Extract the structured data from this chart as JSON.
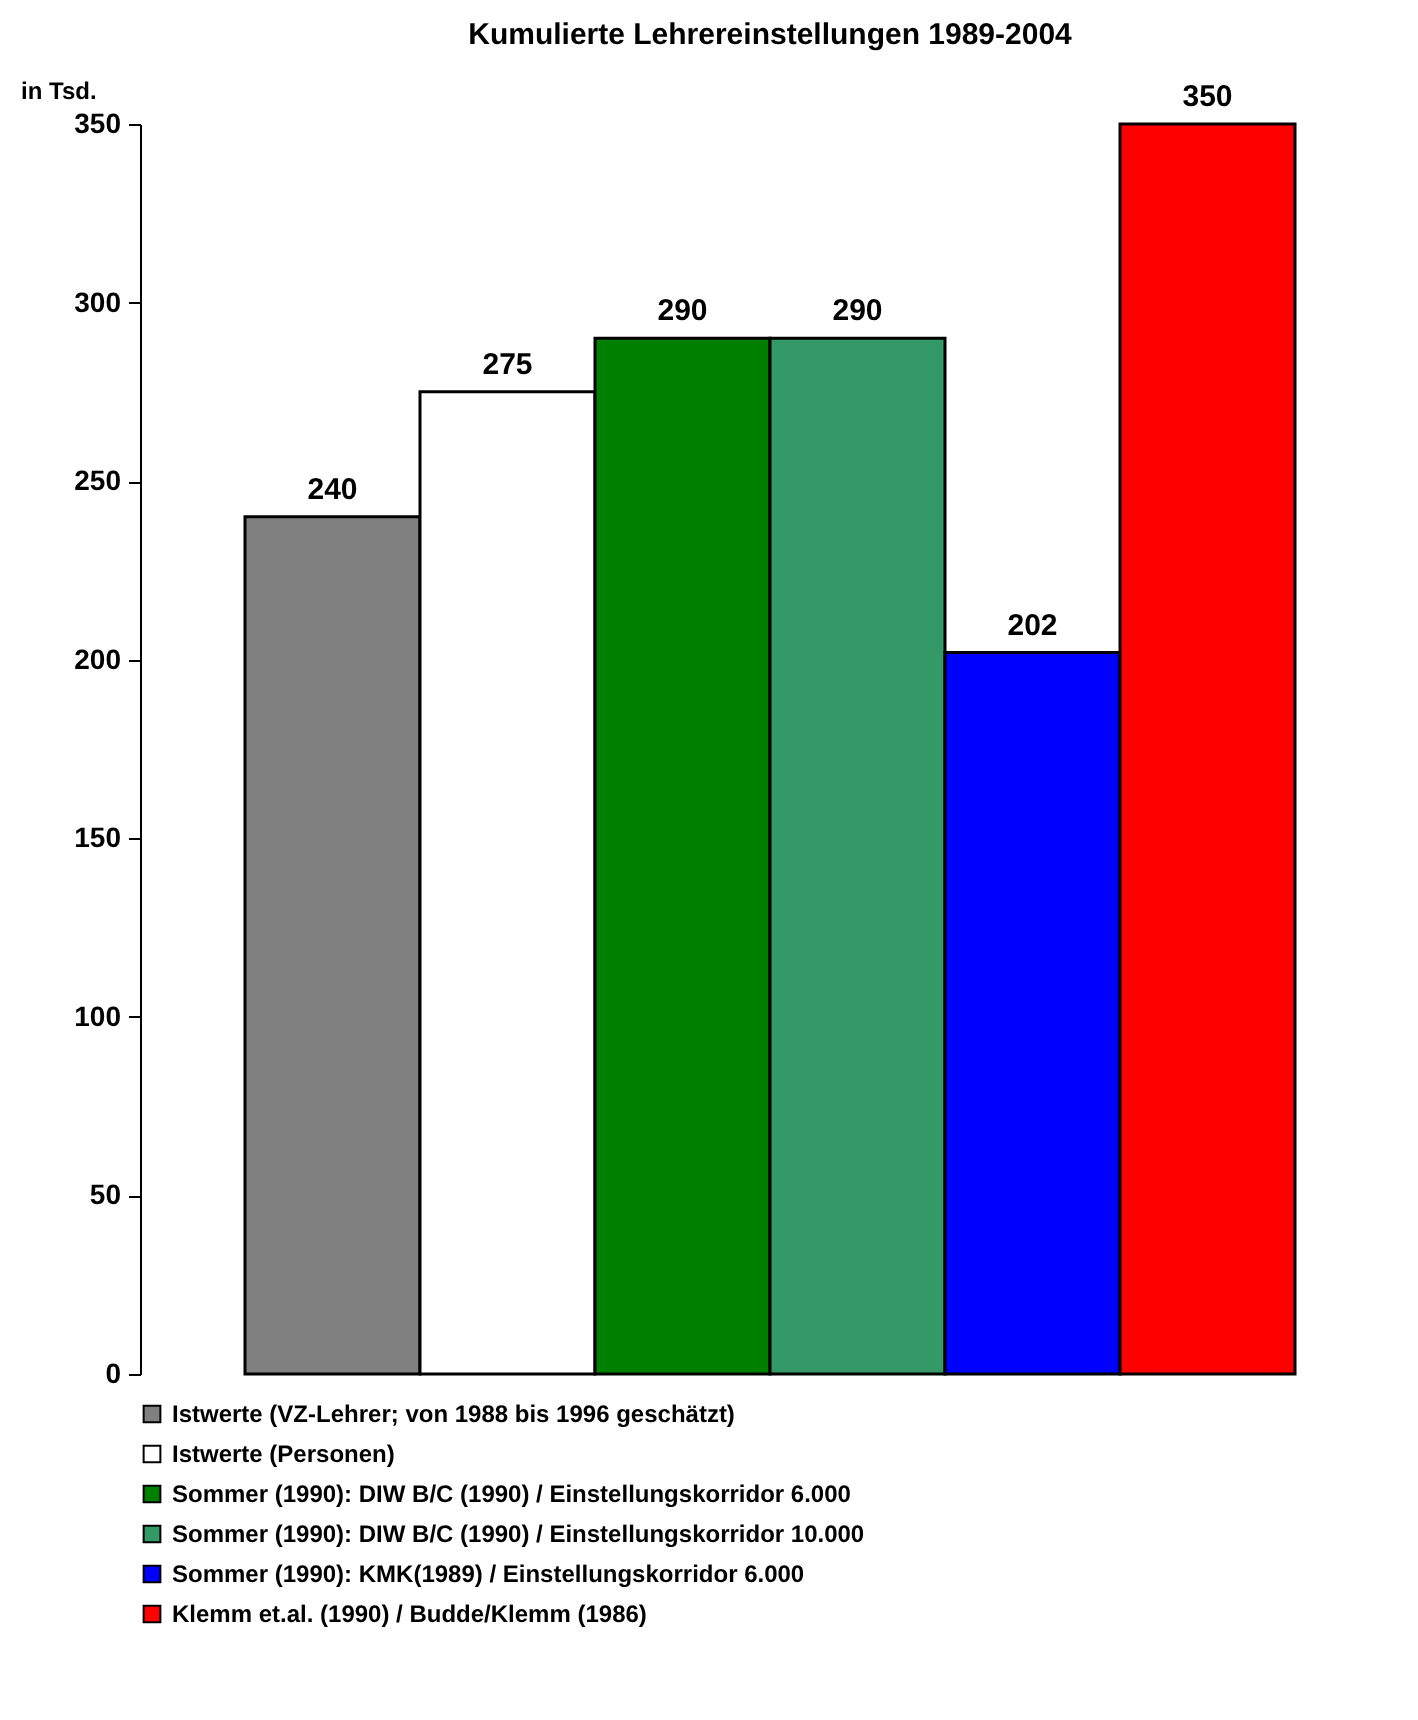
{
  "chart_data": {
    "type": "bar",
    "title": "Kumulierte Lehrereinstellungen 1989-2004",
    "ylabel": "in Tsd.",
    "categories": [
      null
    ],
    "series": [
      {
        "name": "Istwerte (VZ-Lehrer; von 1988 bis 1996 geschätzt)",
        "color": "#808080",
        "values": [
          240
        ]
      },
      {
        "name": "Istwerte (Personen)",
        "color": "#ffffff",
        "values": [
          275
        ]
      },
      {
        "name": "Sommer (1990): DIW B/C (1990) / Einstellungskorridor 6.000",
        "color": "#008000",
        "values": [
          290
        ]
      },
      {
        "name": "Sommer (1990): DIW B/C (1990) / Einstellungskorridor 10.000",
        "color": "#339966",
        "values": [
          290
        ]
      },
      {
        "name": "Sommer (1990): KMK(1989) / Einstellungskorridor 6.000",
        "color": "#0000ff",
        "values": [
          202
        ]
      },
      {
        "name": "Klemm et.al. (1990) / Budde/Klemm (1986)",
        "color": "#ff0000",
        "values": [
          350
        ]
      }
    ],
    "ylim": [
      0,
      350
    ],
    "yticks": [
      0,
      50,
      100,
      150,
      200,
      250,
      300,
      350
    ],
    "data_labels": true,
    "legend": "bottom"
  }
}
